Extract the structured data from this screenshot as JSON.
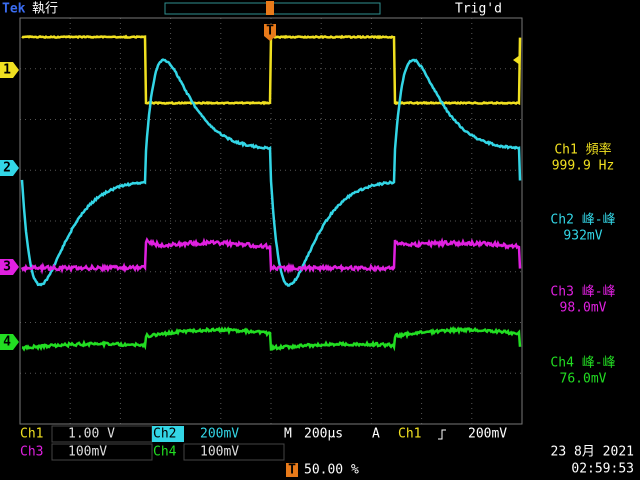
{
  "header": {
    "brand": "Tek",
    "status": "執行",
    "trigger_state": "Trig'd"
  },
  "channel_markers": [
    "1",
    "2",
    "3",
    "4"
  ],
  "trigger_marker": "T",
  "measurements": [
    {
      "label": "Ch1 頻率",
      "value": "999.9 Hz"
    },
    {
      "label": "Ch2 峰-峰",
      "value": "932mV"
    },
    {
      "label": "Ch3 峰-峰",
      "value": "98.0mV"
    },
    {
      "label": "Ch4 峰-峰",
      "value": "76.0mV"
    }
  ],
  "settings": [
    {
      "label": "Ch1",
      "scale": "1.00 V"
    },
    {
      "label": "Ch2",
      "scale": "200mV"
    },
    {
      "label": "Ch3",
      "scale": "100mV"
    },
    {
      "label": "Ch4",
      "scale": "100mV"
    }
  ],
  "timebase": {
    "label": "M",
    "value": "200µs"
  },
  "trigger": {
    "label": "A",
    "source": "Ch1",
    "level": "200mV"
  },
  "trigger_position": {
    "label": "T",
    "value": "50.00 %"
  },
  "date": "23 8月 2021",
  "time": "02:59:53"
}
